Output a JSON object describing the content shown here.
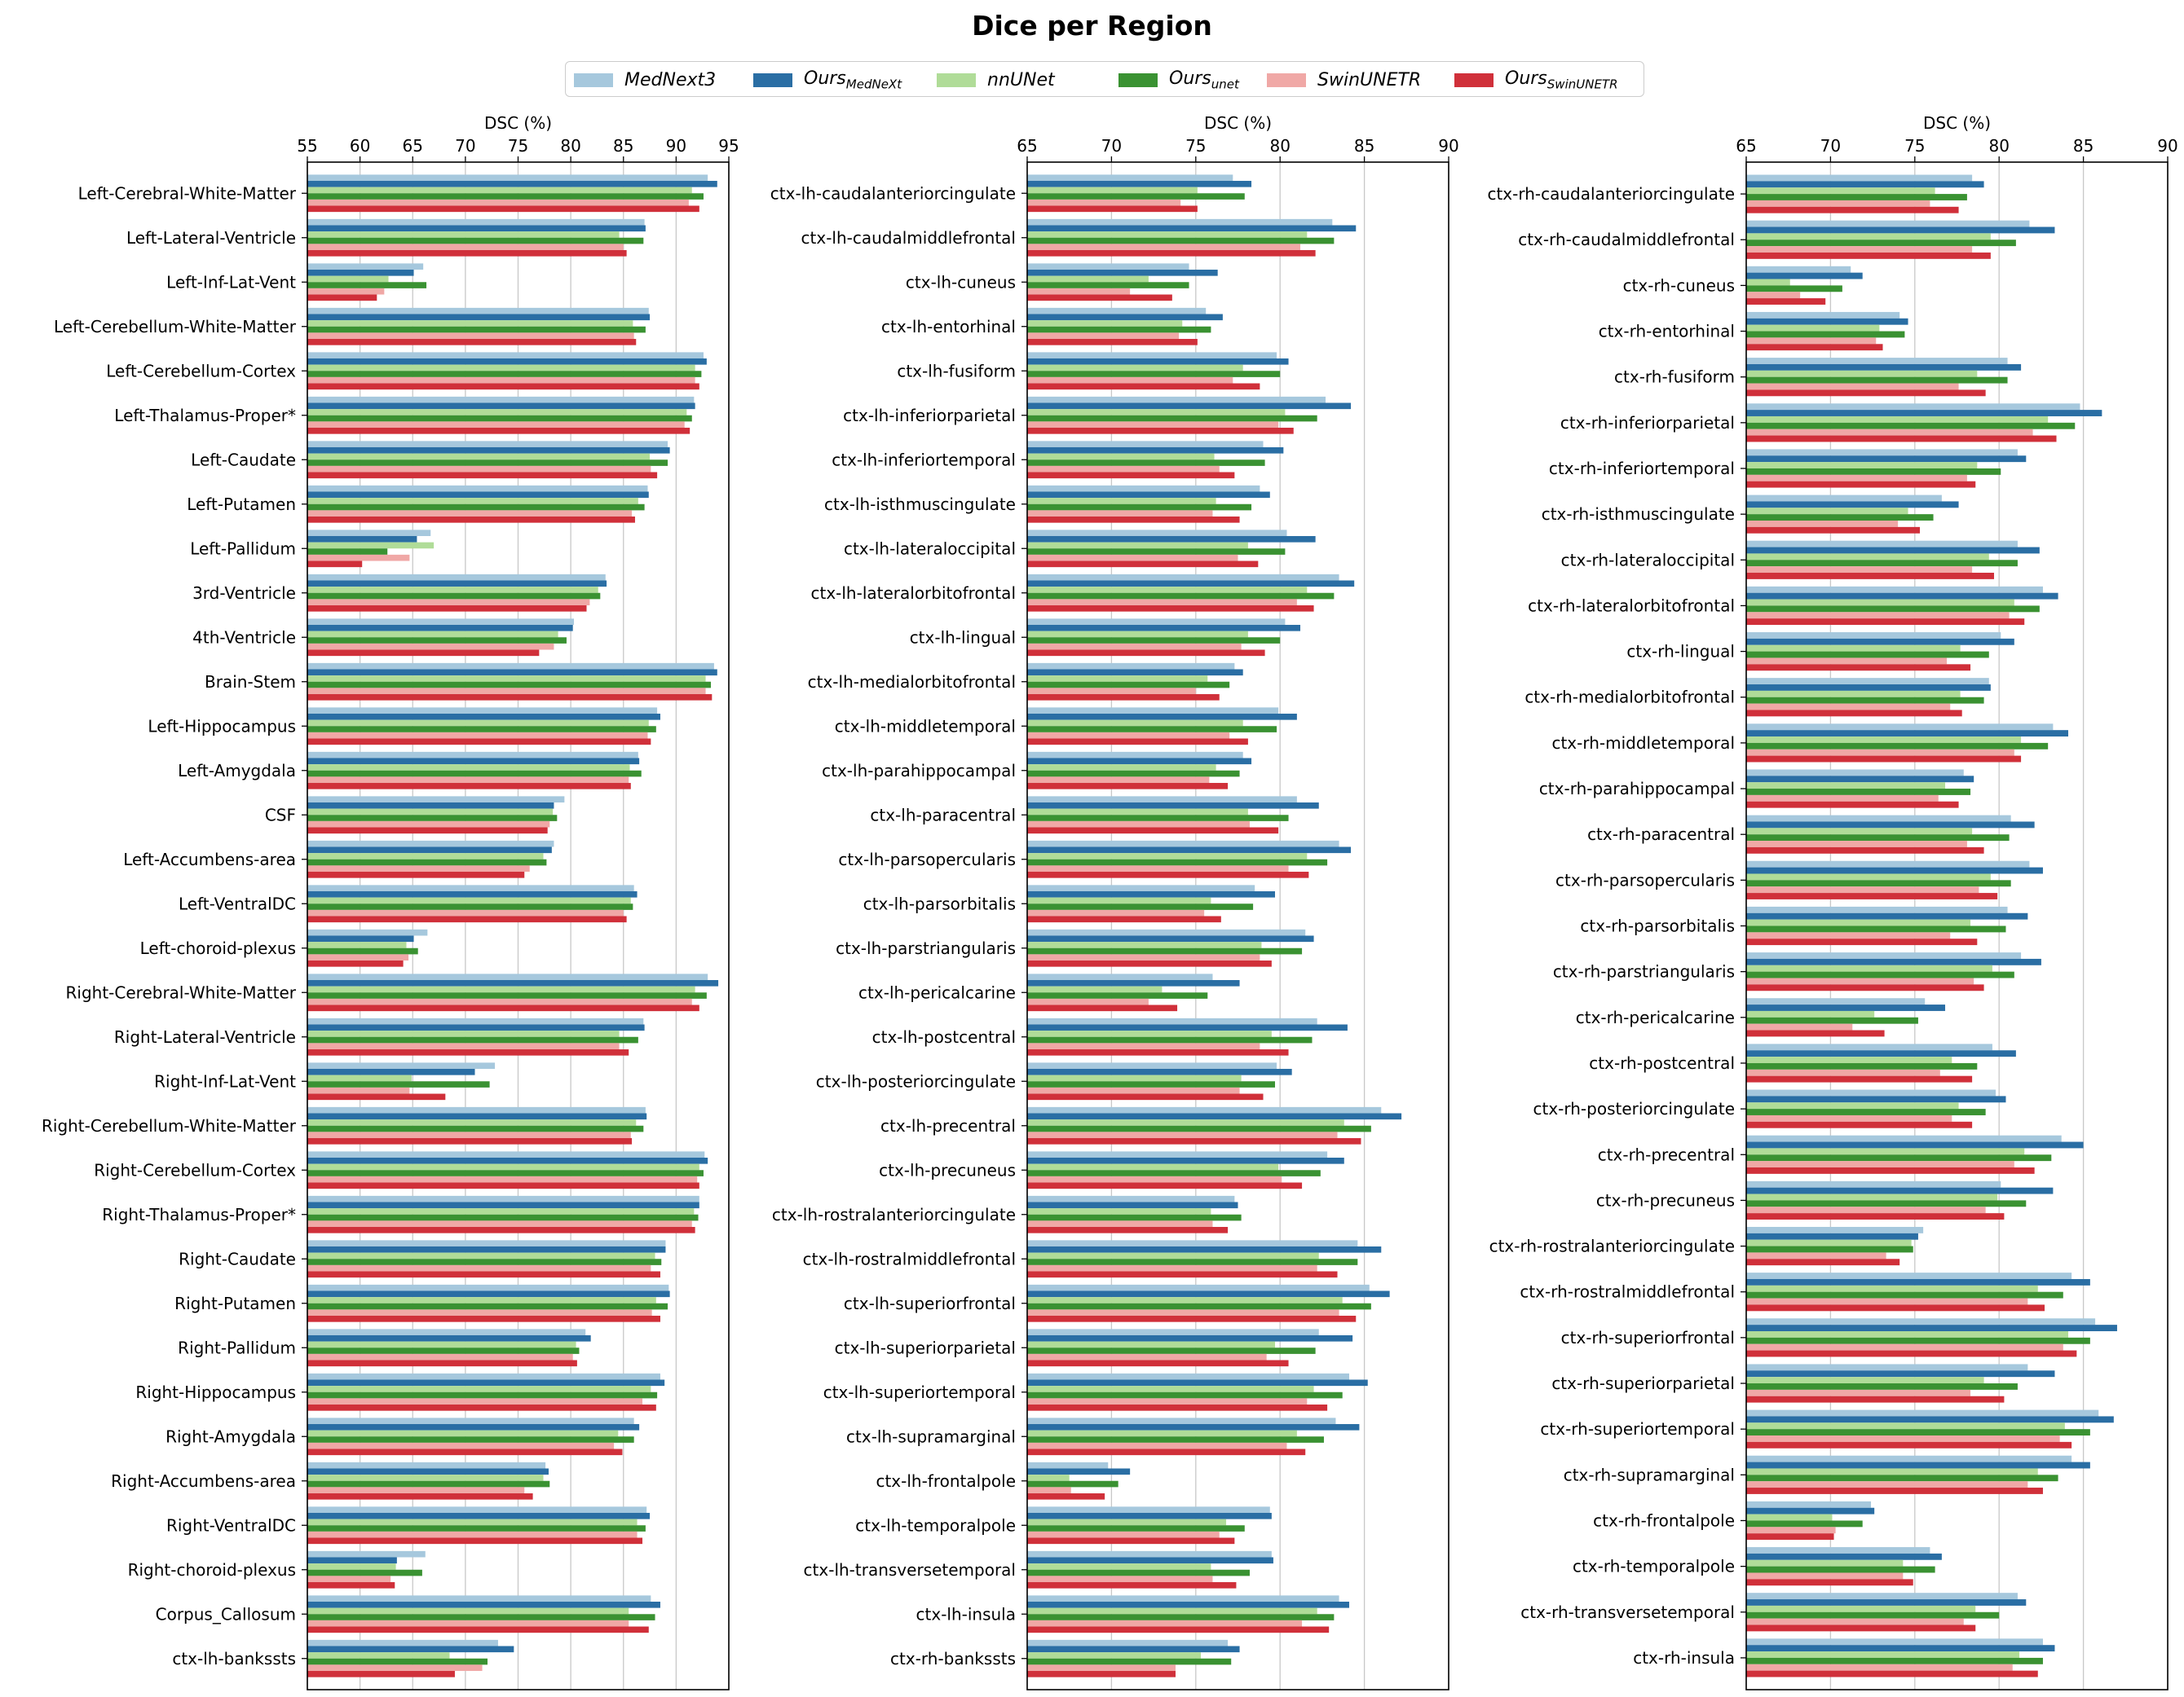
{
  "title": "Dice per Region",
  "legend": {
    "items": [
      {
        "base": "MedNext3",
        "sub": "",
        "color": "#a6c8dd"
      },
      {
        "base": "Ours",
        "sub": "MedNeXt",
        "color": "#2a6ea4"
      },
      {
        "base": "nnUNet",
        "sub": "",
        "color": "#b0dc98"
      },
      {
        "base": "Ours",
        "sub": "unet",
        "color": "#3a9232"
      },
      {
        "base": "SwinUNETR",
        "sub": "",
        "color": "#f0a8a6"
      },
      {
        "base": "Ours",
        "sub": "SwinUNETR",
        "color": "#d0303a"
      }
    ]
  },
  "chart_data": [
    {
      "type": "bar",
      "orientation": "horizontal",
      "xlabel": "DSC (%)",
      "xlim": [
        55,
        95
      ],
      "xticks": [
        55,
        60,
        65,
        70,
        75,
        80,
        85,
        90,
        95
      ],
      "grid": "vertical",
      "series_names": [
        "MedNext3",
        "Ours_MedNeXt",
        "nnUNet",
        "Ours_unet",
        "SwinUNETR",
        "Ours_SwinUNETR"
      ],
      "categories": [
        "Left-Cerebral-White-Matter",
        "Left-Lateral-Ventricle",
        "Left-Inf-Lat-Vent",
        "Left-Cerebellum-White-Matter",
        "Left-Cerebellum-Cortex",
        "Left-Thalamus-Proper*",
        "Left-Caudate",
        "Left-Putamen",
        "Left-Pallidum",
        "3rd-Ventricle",
        "4th-Ventricle",
        "Brain-Stem",
        "Left-Hippocampus",
        "Left-Amygdala",
        "CSF",
        "Left-Accumbens-area",
        "Left-VentralDC",
        "Left-choroid-plexus",
        "Right-Cerebral-White-Matter",
        "Right-Lateral-Ventricle",
        "Right-Inf-Lat-Vent",
        "Right-Cerebellum-White-Matter",
        "Right-Cerebellum-Cortex",
        "Right-Thalamus-Proper*",
        "Right-Caudate",
        "Right-Putamen",
        "Right-Pallidum",
        "Right-Hippocampus",
        "Right-Amygdala",
        "Right-Accumbens-area",
        "Right-VentralDC",
        "Right-choroid-plexus",
        "Corpus_Callosum",
        "ctx-lh-bankssts"
      ],
      "values": [
        [
          93.0,
          93.9,
          91.5,
          92.6,
          91.2,
          92.2
        ],
        [
          87.0,
          87.1,
          84.6,
          86.9,
          85.0,
          85.3
        ],
        [
          66.0,
          65.1,
          62.7,
          66.3,
          62.3,
          61.6
        ],
        [
          87.4,
          87.5,
          85.9,
          87.1,
          86.0,
          86.2
        ],
        [
          92.6,
          92.9,
          91.8,
          92.4,
          91.8,
          92.2
        ],
        [
          91.7,
          91.8,
          91.0,
          91.5,
          90.8,
          91.3
        ],
        [
          89.2,
          89.4,
          87.5,
          89.2,
          87.6,
          88.2
        ],
        [
          87.3,
          87.4,
          86.4,
          87.0,
          85.8,
          86.1
        ],
        [
          66.7,
          65.4,
          67.0,
          62.6,
          64.7,
          60.2
        ],
        [
          83.3,
          83.4,
          82.6,
          82.8,
          81.8,
          81.5
        ],
        [
          80.3,
          80.2,
          78.8,
          79.6,
          78.4,
          77.0
        ],
        [
          93.6,
          93.9,
          92.8,
          93.3,
          92.8,
          93.4
        ],
        [
          88.2,
          88.5,
          87.4,
          88.1,
          87.3,
          87.6
        ],
        [
          86.4,
          86.5,
          85.6,
          86.7,
          85.5,
          85.7
        ],
        [
          79.4,
          78.4,
          78.3,
          78.7,
          78.0,
          77.8
        ],
        [
          78.4,
          78.2,
          77.4,
          77.7,
          76.1,
          75.6
        ],
        [
          86.0,
          86.3,
          85.7,
          85.9,
          85.0,
          85.3
        ],
        [
          66.4,
          65.1,
          64.4,
          65.5,
          64.6,
          64.1
        ],
        [
          93.0,
          94.0,
          91.8,
          92.9,
          91.5,
          92.2
        ],
        [
          86.9,
          87.0,
          84.6,
          86.4,
          84.6,
          85.5
        ],
        [
          72.8,
          70.9,
          64.9,
          72.3,
          64.7,
          68.1
        ],
        [
          87.1,
          87.2,
          86.2,
          86.9,
          85.7,
          85.8
        ],
        [
          92.7,
          93.0,
          92.2,
          92.6,
          92.0,
          92.2
        ],
        [
          92.2,
          92.2,
          91.7,
          92.1,
          91.5,
          91.8
        ],
        [
          89.0,
          89.0,
          88.0,
          88.6,
          87.6,
          88.5
        ],
        [
          89.3,
          89.4,
          88.1,
          89.2,
          87.7,
          88.5
        ],
        [
          81.4,
          81.9,
          80.5,
          80.8,
          80.2,
          80.6
        ],
        [
          88.5,
          88.9,
          87.6,
          88.2,
          86.8,
          88.1
        ],
        [
          86.0,
          86.5,
          84.5,
          86.0,
          84.1,
          84.9
        ],
        [
          77.6,
          77.9,
          77.4,
          78.0,
          75.6,
          76.4
        ],
        [
          87.2,
          87.5,
          86.3,
          87.1,
          86.3,
          86.8
        ],
        [
          66.2,
          63.5,
          63.4,
          65.9,
          62.9,
          63.3
        ],
        [
          87.6,
          88.5,
          85.5,
          88.0,
          85.5,
          87.4
        ],
        [
          73.1,
          74.6,
          68.5,
          72.1,
          71.6,
          69.0
        ]
      ]
    },
    {
      "type": "bar",
      "orientation": "horizontal",
      "xlabel": "DSC (%)",
      "xlim": [
        65,
        90
      ],
      "xticks": [
        65,
        70,
        75,
        80,
        85,
        90
      ],
      "grid": "vertical",
      "series_names": [
        "MedNext3",
        "Ours_MedNeXt",
        "nnUNet",
        "Ours_unet",
        "SwinUNETR",
        "Ours_SwinUNETR"
      ],
      "categories": [
        "ctx-lh-caudalanteriorcingulate",
        "ctx-lh-caudalmiddlefrontal",
        "ctx-lh-cuneus",
        "ctx-lh-entorhinal",
        "ctx-lh-fusiform",
        "ctx-lh-inferiorparietal",
        "ctx-lh-inferiortemporal",
        "ctx-lh-isthmuscingulate",
        "ctx-lh-lateraloccipital",
        "ctx-lh-lateralorbitofrontal",
        "ctx-lh-lingual",
        "ctx-lh-medialorbitofrontal",
        "ctx-lh-middletemporal",
        "ctx-lh-parahippocampal",
        "ctx-lh-paracentral",
        "ctx-lh-parsopercularis",
        "ctx-lh-parsorbitalis",
        "ctx-lh-parstriangularis",
        "ctx-lh-pericalcarine",
        "ctx-lh-postcentral",
        "ctx-lh-posteriorcingulate",
        "ctx-lh-precentral",
        "ctx-lh-precuneus",
        "ctx-lh-rostralanteriorcingulate",
        "ctx-lh-rostralmiddlefrontal",
        "ctx-lh-superiorfrontal",
        "ctx-lh-superiorparietal",
        "ctx-lh-superiortemporal",
        "ctx-lh-supramarginal",
        "ctx-lh-frontalpole",
        "ctx-lh-temporalpole",
        "ctx-lh-transversetemporal",
        "ctx-lh-insula",
        "ctx-rh-bankssts"
      ],
      "values": [
        [
          77.2,
          78.3,
          75.1,
          77.9,
          74.1,
          75.1
        ],
        [
          83.1,
          84.5,
          81.6,
          83.2,
          81.2,
          82.1
        ],
        [
          74.6,
          76.3,
          72.2,
          74.6,
          71.1,
          73.6
        ],
        [
          75.6,
          76.6,
          74.2,
          75.9,
          74.0,
          75.1
        ],
        [
          79.8,
          80.5,
          77.8,
          80.0,
          77.2,
          78.8
        ],
        [
          82.7,
          84.2,
          80.3,
          82.2,
          79.9,
          80.8
        ],
        [
          79.0,
          80.2,
          76.1,
          79.1,
          76.4,
          77.3
        ],
        [
          78.8,
          79.4,
          76.2,
          78.3,
          76.0,
          77.6
        ],
        [
          80.4,
          82.1,
          78.1,
          80.3,
          77.5,
          78.7
        ],
        [
          83.5,
          84.4,
          81.6,
          83.2,
          81.0,
          82.0
        ],
        [
          80.3,
          81.2,
          78.1,
          80.0,
          77.7,
          79.1
        ],
        [
          77.3,
          77.8,
          75.7,
          77.0,
          75.0,
          76.4
        ],
        [
          79.9,
          81.0,
          77.8,
          79.8,
          77.0,
          78.1
        ],
        [
          77.8,
          78.3,
          76.2,
          77.6,
          75.8,
          76.9
        ],
        [
          81.0,
          82.3,
          78.1,
          80.5,
          78.2,
          79.9
        ],
        [
          83.5,
          84.2,
          81.6,
          82.8,
          80.5,
          81.7
        ],
        [
          78.5,
          79.7,
          75.9,
          78.4,
          75.5,
          76.5
        ],
        [
          81.5,
          82.0,
          78.9,
          81.3,
          78.8,
          79.5
        ],
        [
          76.0,
          77.6,
          73.0,
          75.7,
          72.2,
          73.9
        ],
        [
          82.2,
          84.0,
          79.5,
          81.9,
          78.8,
          80.5
        ],
        [
          79.8,
          80.7,
          77.7,
          79.7,
          77.6,
          79.0
        ],
        [
          86.0,
          87.2,
          83.8,
          85.4,
          83.4,
          84.8
        ],
        [
          82.8,
          83.8,
          79.9,
          82.4,
          80.1,
          81.3
        ],
        [
          77.3,
          77.5,
          75.9,
          77.7,
          76.0,
          76.9
        ],
        [
          84.6,
          86.0,
          82.3,
          84.6,
          82.2,
          83.4
        ],
        [
          85.3,
          86.5,
          83.7,
          85.4,
          83.5,
          84.5
        ],
        [
          82.3,
          84.3,
          79.7,
          82.1,
          79.2,
          80.5
        ],
        [
          84.1,
          85.2,
          82.0,
          83.7,
          81.6,
          82.8
        ],
        [
          83.3,
          84.7,
          81.0,
          82.6,
          80.4,
          81.5
        ],
        [
          69.8,
          71.1,
          67.5,
          70.4,
          67.6,
          69.6
        ],
        [
          79.4,
          79.5,
          76.8,
          77.9,
          76.4,
          77.3
        ],
        [
          79.5,
          79.6,
          75.9,
          78.2,
          76.0,
          77.4
        ],
        [
          83.5,
          84.1,
          82.2,
          83.2,
          81.3,
          82.9
        ],
        [
          76.9,
          77.6,
          75.3,
          77.1,
          73.8,
          73.8
        ]
      ]
    },
    {
      "type": "bar",
      "orientation": "horizontal",
      "xlabel": "DSC (%)",
      "xlim": [
        65,
        90
      ],
      "xticks": [
        65,
        70,
        75,
        80,
        85,
        90
      ],
      "grid": "vertical",
      "series_names": [
        "MedNext3",
        "Ours_MedNeXt",
        "nnUNet",
        "Ours_unet",
        "SwinUNETR",
        "Ours_SwinUNETR"
      ],
      "categories": [
        "ctx-rh-caudalanteriorcingulate",
        "ctx-rh-caudalmiddlefrontal",
        "ctx-rh-cuneus",
        "ctx-rh-entorhinal",
        "ctx-rh-fusiform",
        "ctx-rh-inferiorparietal",
        "ctx-rh-inferiortemporal",
        "ctx-rh-isthmuscingulate",
        "ctx-rh-lateraloccipital",
        "ctx-rh-lateralorbitofrontal",
        "ctx-rh-lingual",
        "ctx-rh-medialorbitofrontal",
        "ctx-rh-middletemporal",
        "ctx-rh-parahippocampal",
        "ctx-rh-paracentral",
        "ctx-rh-parsopercularis",
        "ctx-rh-parsorbitalis",
        "ctx-rh-parstriangularis",
        "ctx-rh-pericalcarine",
        "ctx-rh-postcentral",
        "ctx-rh-posteriorcingulate",
        "ctx-rh-precentral",
        "ctx-rh-precuneus",
        "ctx-rh-rostralanteriorcingulate",
        "ctx-rh-rostralmiddlefrontal",
        "ctx-rh-superiorfrontal",
        "ctx-rh-superiorparietal",
        "ctx-rh-superiortemporal",
        "ctx-rh-supramarginal",
        "ctx-rh-frontalpole",
        "ctx-rh-temporalpole",
        "ctx-rh-transversetemporal",
        "ctx-rh-insula"
      ],
      "values": [
        [
          78.4,
          79.1,
          76.2,
          78.1,
          75.9,
          77.6
        ],
        [
          81.8,
          83.3,
          79.5,
          81.0,
          78.4,
          79.5
        ],
        [
          71.2,
          71.9,
          67.6,
          70.7,
          68.2,
          69.7
        ],
        [
          74.1,
          74.6,
          72.9,
          74.4,
          72.7,
          73.1
        ],
        [
          80.5,
          81.3,
          78.7,
          80.5,
          77.6,
          79.2
        ],
        [
          84.8,
          86.1,
          82.9,
          84.5,
          82.0,
          83.4
        ],
        [
          81.1,
          81.6,
          78.7,
          80.1,
          78.1,
          78.6
        ],
        [
          76.6,
          77.6,
          74.6,
          76.1,
          74.0,
          75.3
        ],
        [
          81.1,
          82.4,
          79.4,
          81.1,
          78.4,
          79.7
        ],
        [
          82.6,
          83.5,
          80.9,
          82.4,
          80.6,
          81.5
        ],
        [
          80.1,
          80.9,
          77.7,
          79.4,
          76.9,
          78.3
        ],
        [
          79.4,
          79.5,
          77.7,
          79.1,
          77.1,
          77.8
        ],
        [
          83.2,
          84.1,
          81.3,
          82.9,
          80.9,
          81.3
        ],
        [
          77.9,
          78.5,
          76.8,
          78.3,
          76.4,
          77.6
        ],
        [
          80.7,
          82.1,
          78.4,
          80.6,
          78.1,
          79.1
        ],
        [
          81.8,
          82.6,
          79.5,
          80.7,
          78.8,
          79.9
        ],
        [
          80.5,
          81.7,
          78.3,
          80.4,
          77.1,
          78.7
        ],
        [
          81.3,
          82.5,
          79.6,
          80.9,
          78.5,
          79.1
        ],
        [
          75.6,
          76.8,
          72.6,
          75.2,
          71.3,
          73.2
        ],
        [
          79.6,
          81.0,
          77.2,
          78.7,
          76.5,
          78.4
        ],
        [
          79.8,
          80.4,
          77.6,
          79.2,
          77.2,
          78.4
        ],
        [
          83.7,
          85.0,
          81.5,
          83.1,
          80.9,
          82.1
        ],
        [
          80.1,
          83.2,
          79.9,
          81.6,
          79.2,
          80.3
        ],
        [
          75.5,
          75.2,
          74.8,
          74.9,
          73.3,
          74.1
        ],
        [
          84.3,
          85.4,
          82.3,
          83.8,
          81.7,
          82.7
        ],
        [
          85.7,
          87.0,
          84.1,
          85.4,
          83.8,
          84.6
        ],
        [
          81.7,
          83.3,
          79.1,
          81.1,
          78.3,
          80.3
        ],
        [
          85.9,
          86.8,
          83.9,
          85.4,
          83.6,
          84.3
        ],
        [
          84.3,
          85.4,
          82.3,
          83.5,
          81.7,
          82.6
        ],
        [
          72.4,
          72.6,
          70.1,
          71.9,
          70.3,
          70.2
        ],
        [
          75.9,
          76.6,
          74.3,
          76.2,
          74.3,
          74.9
        ],
        [
          81.1,
          81.6,
          78.6,
          80.0,
          77.9,
          78.6
        ],
        [
          82.6,
          83.3,
          81.2,
          82.6,
          80.8,
          82.3
        ]
      ]
    }
  ]
}
